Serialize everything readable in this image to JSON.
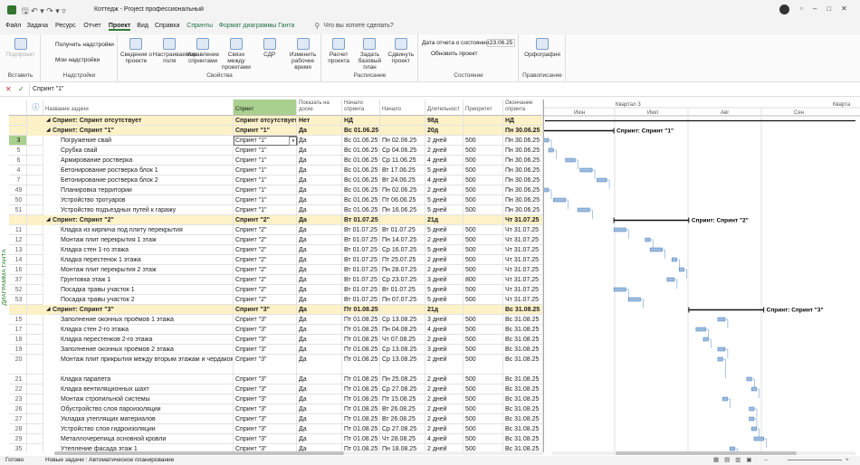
{
  "window": {
    "title": "Коттедж - Project профессиональный"
  },
  "menu": {
    "tabs": [
      "Файл",
      "Задача",
      "Ресурс",
      "Отчет",
      "Проект",
      "Вид",
      "Справка",
      "Спринты",
      "Формат диаграммы Ганта"
    ],
    "active": 4,
    "search": "Что вы хотите сделать?"
  },
  "ribbon": {
    "groups": [
      {
        "label": "Вставить",
        "buttons": [
          "Подпроект"
        ]
      },
      {
        "label": "Надстройки",
        "buttons": [
          "Получить надстройки",
          "Мои надстройки"
        ]
      },
      {
        "label": "Свойства",
        "buttons": [
          "Сведения о проекте",
          "Настраиваемые поля",
          "Управление спринтами",
          "Связи между проектами",
          "СДР",
          "Изменить рабочее время"
        ]
      },
      {
        "label": "Расписание",
        "buttons": [
          "Расчет проекта",
          "Задать базовый план",
          "Сдвинуть проект"
        ]
      },
      {
        "label": "Состояние",
        "status_date_label": "Дата отчета о состоянии:",
        "status_date": "23.06.25",
        "buttons": [
          "Обновить проект"
        ]
      },
      {
        "label": "Правописание",
        "buttons": [
          "Орфография"
        ]
      }
    ]
  },
  "formula_bar": {
    "value": "Спринт \"1\""
  },
  "view_label": "ДИАГРАММА ГАНТА",
  "table": {
    "columns": [
      "Название задачи",
      "Спринт",
      "Показать на доске",
      "Начало спринта",
      "Начало",
      "Длительност",
      "Приоритет",
      "Окончание спринта"
    ],
    "selected_id": "3",
    "sections": [
      {
        "summary": {
          "name": "Спринт: Спринт отсутствует",
          "sprint": "Спринт отсутствует",
          "show": "Нет",
          "sprint_start": "НД",
          "duration": "98д",
          "end": "НД"
        },
        "tasks": []
      },
      {
        "summary": {
          "name": "Спринт: Спринт \"1\"",
          "sprint": "Спринт \"1\"",
          "show": "Да",
          "sprint_start": "Вс 01.06.25",
          "duration": "20д",
          "end": "Пн 30.06.25"
        },
        "tasks": [
          [
            "3",
            "Погружение свай",
            "Спринт \"1\"",
            "Да",
            "Вс 01.06.25",
            "Пн 02.06.25",
            "2 дней",
            "500",
            "Пн 30.06.25"
          ],
          [
            "5",
            "Срубка свай",
            "Спринт \"1\"",
            "Да",
            "Вс 01.06.25",
            "Ср 04.06.25",
            "2 дней",
            "500",
            "Пн 30.06.25"
          ],
          [
            "6",
            "Армирование ростверка",
            "Спринт \"1\"",
            "Да",
            "Вс 01.06.25",
            "Ср 11.06.25",
            "4 дней",
            "500",
            "Пн 30.06.25"
          ],
          [
            "4",
            "Бетонирование ростверка блок 1",
            "Спринт \"1\"",
            "Да",
            "Вс 01.06.25",
            "Вт 17.06.25",
            "5 дней",
            "500",
            "Пн 30.06.25"
          ],
          [
            "7",
            "Бетонирование ростверка блок 2",
            "Спринт \"1\"",
            "Да",
            "Вс 01.06.25",
            "Вт 24.06.25",
            "4 дней",
            "500",
            "Пн 30.06.25"
          ],
          [
            "49",
            "Планировка территории",
            "Спринт \"1\"",
            "Да",
            "Вс 01.06.25",
            "Пн 02.06.25",
            "2 дней",
            "500",
            "Пн 30.06.25"
          ],
          [
            "50",
            "Устройство тротуаров",
            "Спринт \"1\"",
            "Да",
            "Вс 01.06.25",
            "Пт 06.06.25",
            "5 дней",
            "500",
            "Пн 30.06.25"
          ],
          [
            "51",
            "Устройство подъездных путей к гаражу",
            "Спринт \"1\"",
            "Да",
            "Вс 01.06.25",
            "Пн 16.06.25",
            "5 дней",
            "500",
            "Пн 30.06.25"
          ]
        ]
      },
      {
        "summary": {
          "name": "Спринт: Спринт \"2\"",
          "sprint": "Спринт \"2\"",
          "show": "Да",
          "sprint_start": "Вт 01.07.25",
          "duration": "21д",
          "end": "Чт 31.07.25"
        },
        "tasks": [
          [
            "11",
            "Кладка из кирпича под плиту перекрытия",
            "Спринт \"2\"",
            "Да",
            "Вт 01.07.25",
            "Вт 01.07.25",
            "5 дней",
            "500",
            "Чт 31.07.25"
          ],
          [
            "12",
            "Монтаж плит перекрытия 1 этаж",
            "Спринт \"2\"",
            "Да",
            "Вт 01.07.25",
            "Пн 14.07.25",
            "2 дней",
            "500",
            "Чт 31.07.25"
          ],
          [
            "13",
            "Кладка стен 1-го этажа",
            "Спринт \"2\"",
            "Да",
            "Вт 01.07.25",
            "Ср 16.07.25",
            "5 дней",
            "500",
            "Чт 31.07.25"
          ],
          [
            "14",
            "Кладка перестенок 1 этажа",
            "Спринт \"2\"",
            "Да",
            "Вт 01.07.25",
            "Пт 25.07.25",
            "2 дней",
            "500",
            "Чт 31.07.25"
          ],
          [
            "16",
            "Монтаж плит перекрытия 2 этаж",
            "Спринт \"2\"",
            "Да",
            "Вт 01.07.25",
            "Пн 28.07.25",
            "2 дней",
            "500",
            "Чт 31.07.25"
          ],
          [
            "37",
            "Грунтовка этаж 1",
            "Спринт \"2\"",
            "Да",
            "Вт 01.07.25",
            "Ср 23.07.25",
            "3 дней",
            "800",
            "Чт 31.07.25"
          ],
          [
            "52",
            "Посадка травы участок 1",
            "Спринт \"2\"",
            "Да",
            "Вт 01.07.25",
            "Вт 01.07.25",
            "5 дней",
            "500",
            "Чт 31.07.25"
          ],
          [
            "53",
            "Посадка травы участок 2",
            "Спринт \"2\"",
            "Да",
            "Вт 01.07.25",
            "Пн 07.07.25",
            "5 дней",
            "500",
            "Чт 31.07.25"
          ]
        ]
      },
      {
        "summary": {
          "name": "Спринт: Спринт \"3\"",
          "sprint": "Спринт \"3\"",
          "show": "Да",
          "sprint_start": "Пт 01.08.25",
          "duration": "21д",
          "end": "Вс 31.08.25"
        },
        "tasks": [
          [
            "15",
            "Заполнение оконных проёмов 1 этажа",
            "Спринт \"3\"",
            "Да",
            "Пт 01.08.25",
            "Ср 13.08.25",
            "3 дней",
            "500",
            "Вс 31.08.25"
          ],
          [
            "17",
            "Кладка стен 2-го этажа",
            "Спринт \"3\"",
            "Да",
            "Пт 01.08.25",
            "Пн 04.08.25",
            "4 дней",
            "500",
            "Вс 31.08.25"
          ],
          [
            "18",
            "Кладка перестенков 2-го этажа",
            "Спринт \"3\"",
            "Да",
            "Пт 01.08.25",
            "Чт 07.08.25",
            "2 дней",
            "500",
            "Вс 31.08.25"
          ],
          [
            "19",
            "Заполнение оконных проёмов 2 этажа",
            "Спринт \"3\"",
            "Да",
            "Пт 01.08.25",
            "Ср 13.08.25",
            "3 дней",
            "500",
            "Вс 31.08.25"
          ],
          [
            "20",
            "Монтаж плит прикрытия между вторым этажам и чердаком",
            "Спринт \"3\"",
            "Да",
            "Пт 01.08.25",
            "Ср 13.08.25",
            "2 дней",
            "500",
            "Вс 31.08.25"
          ],
          [
            "21",
            "Кладка парапета",
            "Спринт \"3\"",
            "Да",
            "Пт 01.08.25",
            "Пн 25.08.25",
            "2 дней",
            "500",
            "Вс 31.08.25"
          ],
          [
            "22",
            "Кладка вентиляционных шахт",
            "Спринт \"3\"",
            "Да",
            "Пт 01.08.25",
            "Ср 27.08.25",
            "2 дней",
            "500",
            "Вс 31.08.25"
          ],
          [
            "23",
            "Монтаж стропильной системы",
            "Спринт \"3\"",
            "Да",
            "Пт 01.08.25",
            "Пт 15.08.25",
            "2 дней",
            "500",
            "Вс 31.08.25"
          ],
          [
            "26",
            "Обустройство слоя пароизоляции",
            "Спринт \"3\"",
            "Да",
            "Пт 01.08.25",
            "Вт 26.08.25",
            "2 дней",
            "500",
            "Вс 31.08.25"
          ],
          [
            "27",
            "Укладка утеплящих материалов",
            "Спринт \"3\"",
            "Да",
            "Пт 01.08.25",
            "Вт 26.08.25",
            "2 дней",
            "500",
            "Вс 31.08.25"
          ],
          [
            "28",
            "Устройство слоя гидроизоляции",
            "Спринт \"3\"",
            "Да",
            "Пт 01.08.25",
            "Ср 27.08.25",
            "2 дней",
            "500",
            "Вс 31.08.25"
          ],
          [
            "29",
            "Металлочерепица основной кровли",
            "Спринт \"3\"",
            "Да",
            "Пт 01.08.25",
            "Чт 28.08.25",
            "4 дней",
            "500",
            "Вс 31.08.25"
          ],
          [
            "35",
            "Утепление фасада этаж 1",
            "Спринт \"3\"",
            "Да",
            "Пт 01.08.25",
            "Пн 18.08.25",
            "2 дней",
            "500",
            "Вс 31.08.25"
          ]
        ]
      }
    ]
  },
  "timescale": {
    "quarters": [
      "Квартал 3",
      "Кварта"
    ],
    "months": [
      "Июн",
      "Июл",
      "Авг",
      "Сен"
    ]
  },
  "status_bar": {
    "ready": "Готово",
    "mode": "Новые задачи : Автоматическое планирование"
  }
}
